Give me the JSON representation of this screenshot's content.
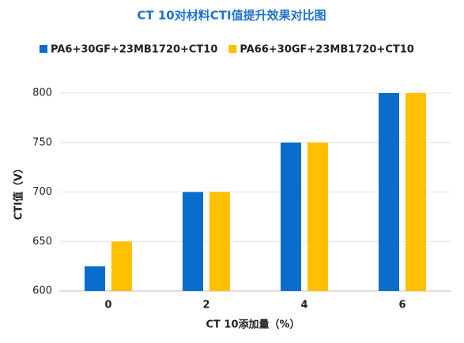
{
  "chart_data": {
    "type": "bar",
    "title": "CT 10对材料CTI值提升效果对比图",
    "x_label": "CT 10添加量（%）",
    "y_label": "CTI值（V）",
    "categories": [
      "0",
      "2",
      "4",
      "6"
    ],
    "series": [
      {
        "name": "PA6+30GF+23MB1720+CT10",
        "color": "#0a6ccc",
        "values": [
          625,
          700,
          750,
          800
        ]
      },
      {
        "name": "PA66+30GF+23MB1720+CT10",
        "color": "#ffc000",
        "values": [
          650,
          700,
          750,
          800
        ]
      }
    ],
    "ylim": [
      600,
      800
    ],
    "yticks": [
      600,
      650,
      700,
      750,
      800
    ],
    "grid": true
  }
}
